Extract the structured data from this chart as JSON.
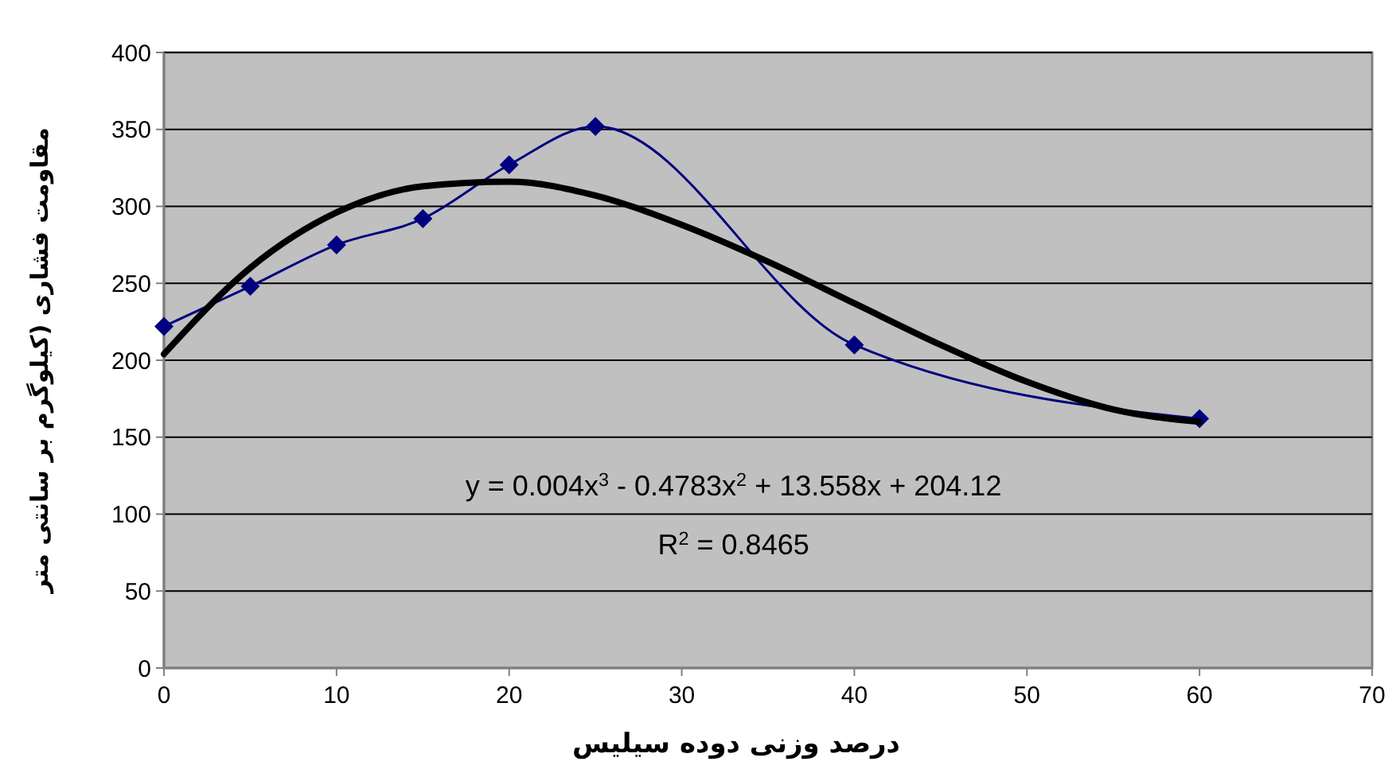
{
  "chart_data": {
    "type": "line",
    "xlabel": "درصد وزنی دوده سیلیس",
    "ylabel": "مقاومت فشاری (کیلوگرم بر سانتی متر",
    "x": [
      0,
      5,
      10,
      15,
      20,
      25,
      40,
      60
    ],
    "series": [
      {
        "color": "#000080",
        "marker": "diamond",
        "values": [
          222,
          248,
          275,
          292,
          327,
          352,
          210,
          162
        ]
      },
      {
        "type": "line",
        "color": "#000000",
        "marker": "none",
        "x": [
          0,
          5,
          10,
          15,
          20,
          25,
          30,
          35,
          40,
          45,
          50,
          55,
          60
        ],
        "values": [
          204,
          260,
          296,
          313,
          316,
          307,
          288,
          264,
          237,
          210,
          186,
          168,
          160
        ]
      }
    ],
    "xlim": [
      0,
      70
    ],
    "xticks": [
      0,
      10,
      20,
      30,
      40,
      50,
      60,
      70
    ],
    "ylim": [
      0,
      400
    ],
    "yticks": [
      0,
      50,
      100,
      150,
      200,
      250,
      300,
      350,
      400
    ],
    "grid": "y",
    "annotations": [
      "y = 0.004x$^{3}$ - 0.4783x$^{2}$ + 13.558x + 204.12",
      "R$^{2}$ = 0.8465"
    ]
  }
}
